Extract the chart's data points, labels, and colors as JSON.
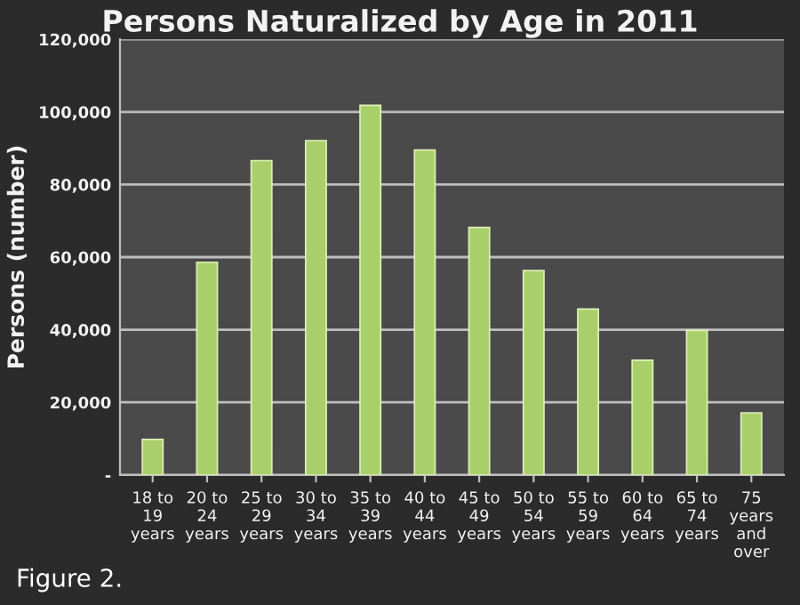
{
  "chart_data": {
    "type": "bar",
    "title": "Persons Naturalized by Age in 2011",
    "ylabel": "Persons (number)",
    "categories": [
      "18 to\n19\nyears",
      "20 to\n24\nyears",
      "25 to\n29\nyears",
      "30 to\n34\nyears",
      "35 to\n39\nyears",
      "40 to\n44\nyears",
      "45 to\n49\nyears",
      "50 to\n54\nyears",
      "55 to\n59\nyears",
      "60 to\n64\nyears",
      "65 to\n74\nyears",
      "75\nyears\nand\nover"
    ],
    "values": [
      9800,
      58600,
      86600,
      92100,
      101800,
      89500,
      68200,
      56300,
      45700,
      31600,
      39800,
      17100
    ],
    "color": "#a9cf6b",
    "ylim": [
      0,
      120000
    ],
    "yticks": [
      {
        "value": 0,
        "label": "-"
      },
      {
        "value": 20000,
        "label": "20,000"
      },
      {
        "value": 40000,
        "label": "40,000"
      },
      {
        "value": 60000,
        "label": "60,000"
      },
      {
        "value": 80000,
        "label": "80,000"
      },
      {
        "value": 100000,
        "label": "100,000"
      },
      {
        "value": 120000,
        "label": "120,000"
      }
    ],
    "grid": "y",
    "annotations": [
      "Figure 2."
    ]
  }
}
